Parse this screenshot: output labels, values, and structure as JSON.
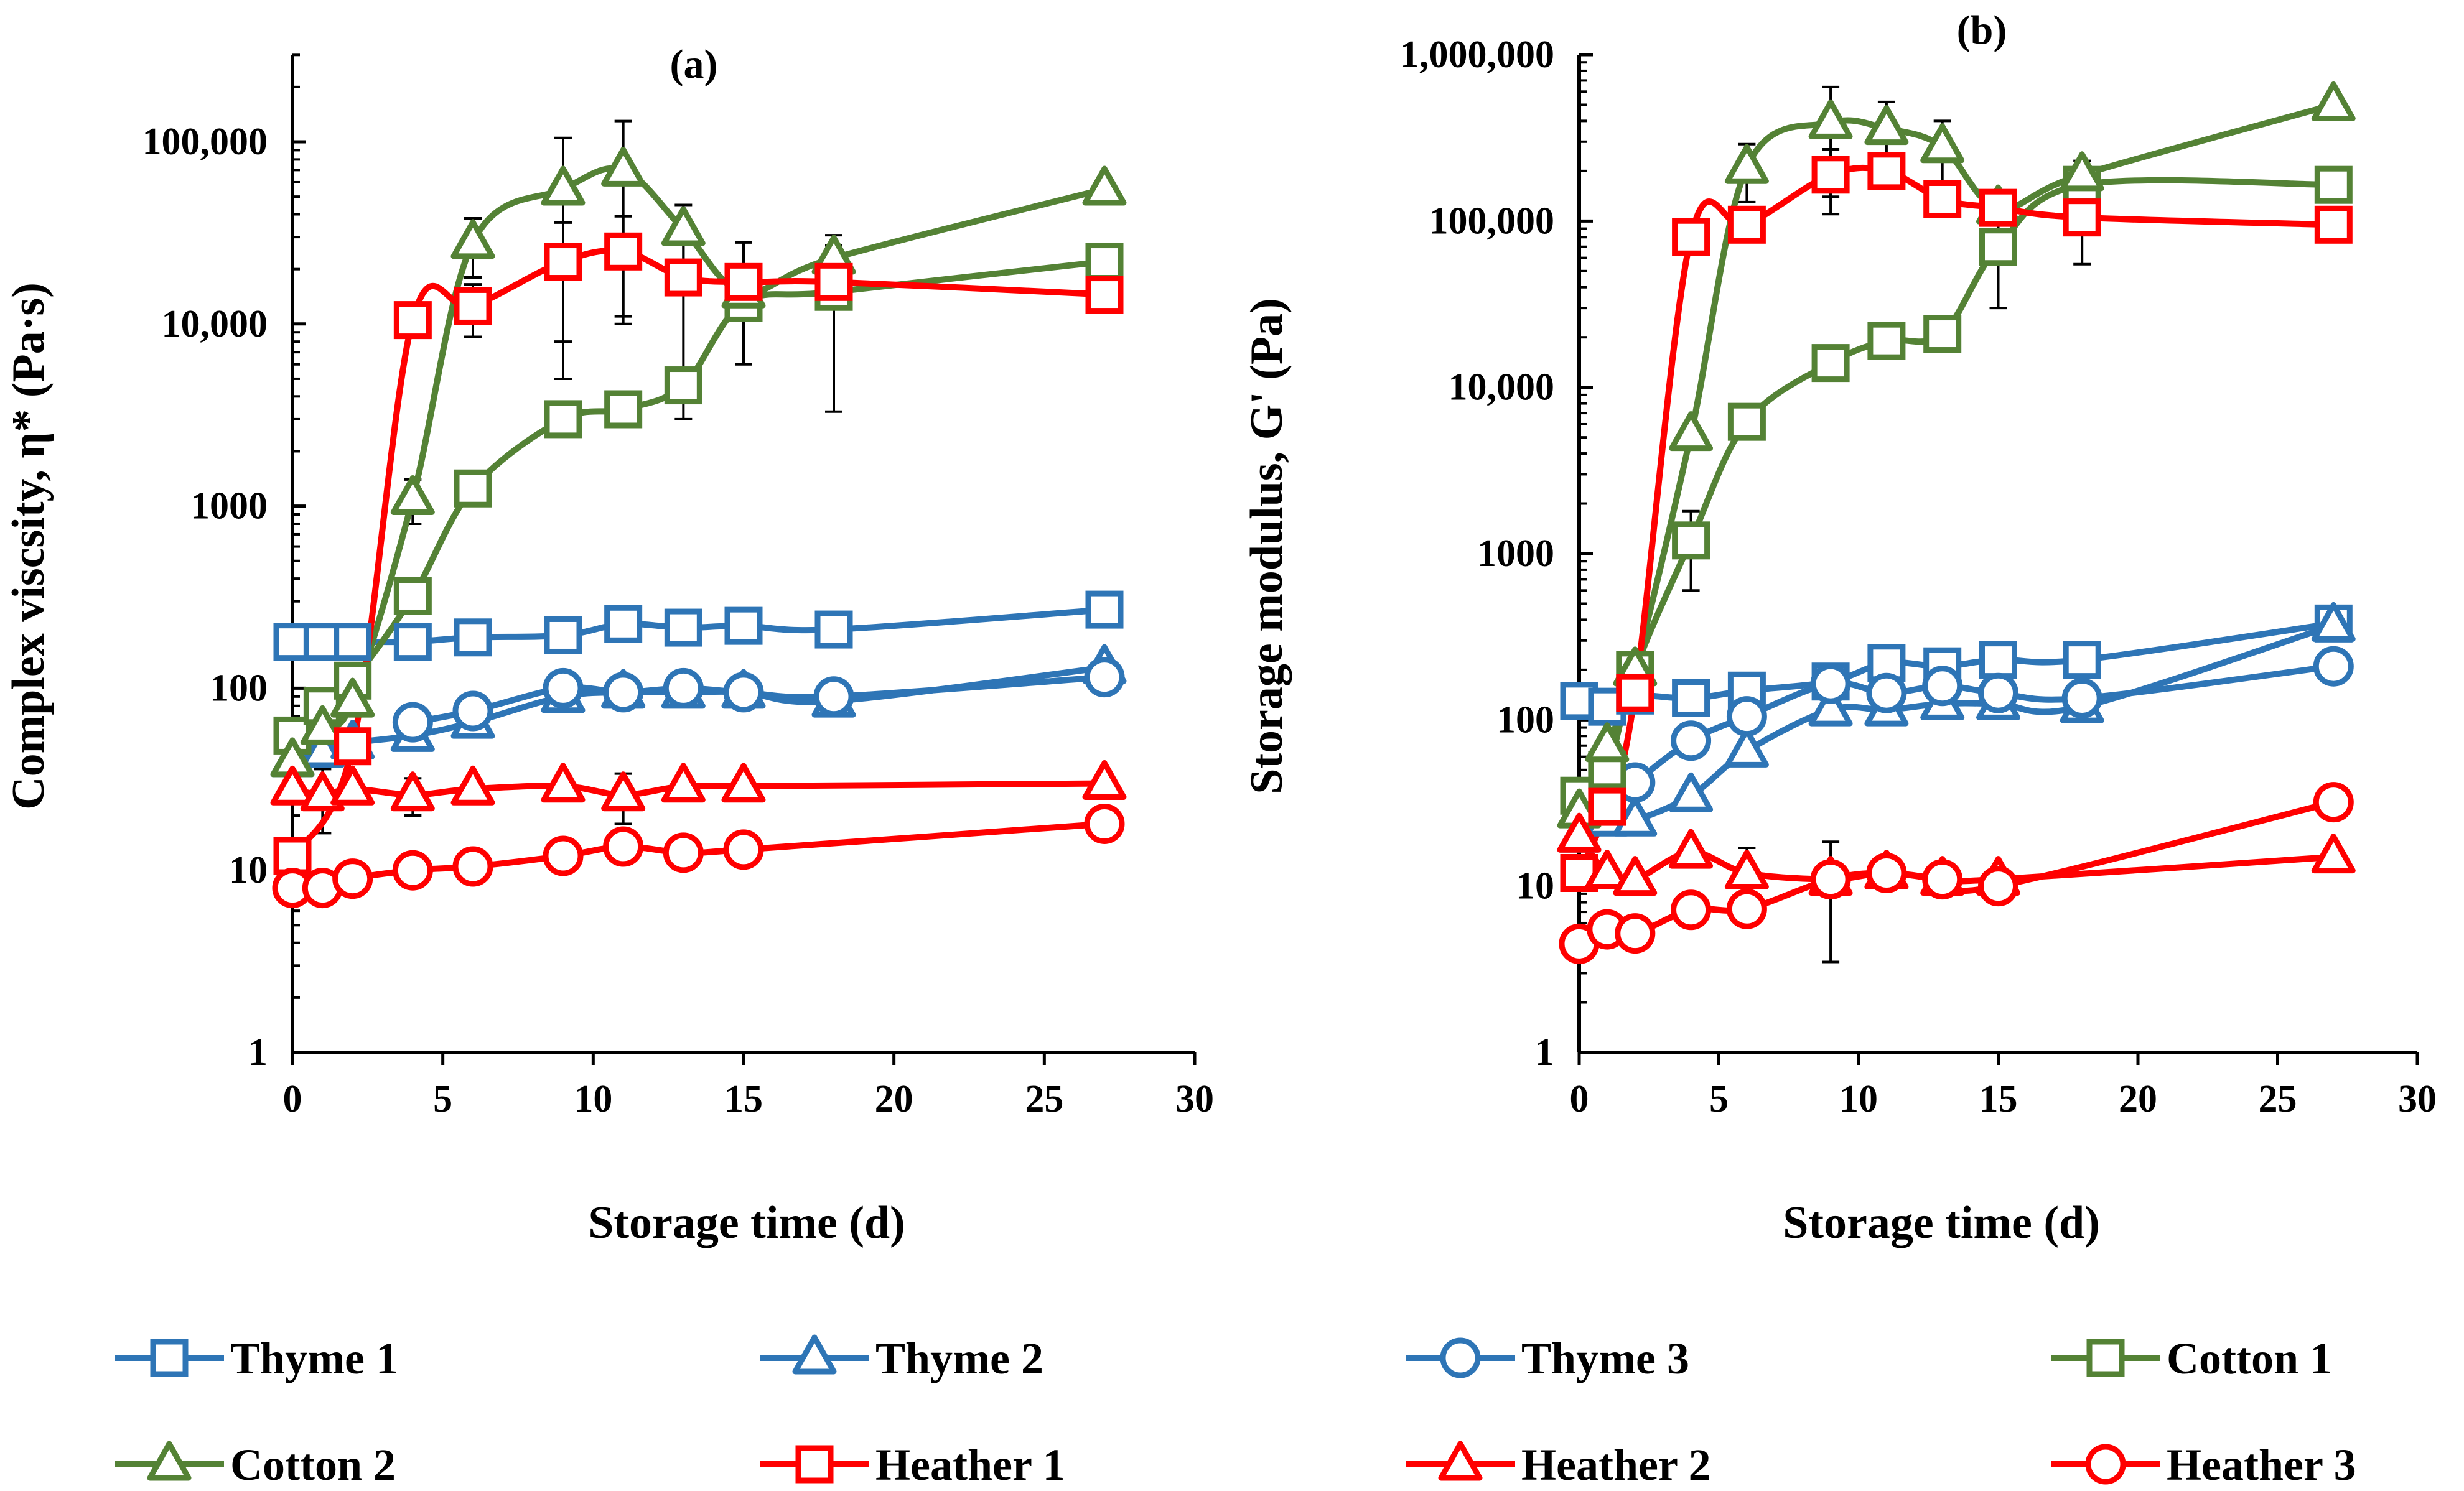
{
  "colors": {
    "thyme": "#2E75B6",
    "cotton": "#548235",
    "heather": "#FF0000",
    "axis": "#000000"
  },
  "legend": [
    {
      "name": "Thyme 1",
      "color": "#2E75B6",
      "marker": "square"
    },
    {
      "name": "Thyme 2",
      "color": "#2E75B6",
      "marker": "triangle"
    },
    {
      "name": "Thyme 3",
      "color": "#2E75B6",
      "marker": "circle"
    },
    {
      "name": "Cotton 1",
      "color": "#548235",
      "marker": "square"
    },
    {
      "name": "Cotton 2",
      "color": "#548235",
      "marker": "triangle"
    },
    {
      "name": "Heather 1",
      "color": "#FF0000",
      "marker": "square"
    },
    {
      "name": "Heather 2",
      "color": "#FF0000",
      "marker": "triangle"
    },
    {
      "name": "Heather 3",
      "color": "#FF0000",
      "marker": "circle"
    }
  ],
  "chart_data": [
    {
      "type": "line",
      "title": "(a)",
      "xlabel": "Storage time (d)",
      "ylabel": "Complex viscsity, η* (Pa·s)",
      "yscale": "log",
      "xlim": [
        0,
        30
      ],
      "ylim": [
        1,
        300000
      ],
      "xticks": [
        0,
        5,
        10,
        15,
        20,
        25,
        30
      ],
      "xtick_labels": [
        "0",
        "5",
        "10",
        "15",
        "20",
        "25",
        "30"
      ],
      "yticks": [
        1,
        10,
        100,
        1000,
        10000,
        100000
      ],
      "ytick_labels": [
        "1",
        "10",
        "100",
        "1000",
        "10,000",
        "100,000"
      ],
      "series": [
        {
          "name": "Thyme 1",
          "color": "#2E75B6",
          "marker": "square",
          "x": [
            0,
            1,
            2,
            4,
            6,
            9,
            11,
            13,
            15,
            18,
            27
          ],
          "y": [
            180,
            180,
            180,
            180,
            190,
            195,
            225,
            215,
            220,
            210,
            270
          ]
        },
        {
          "name": "Thyme 2",
          "color": "#2E75B6",
          "marker": "triangle",
          "x": [
            0,
            1,
            2,
            4,
            6,
            9,
            11,
            13,
            15,
            18,
            27
          ],
          "y": [
            40,
            45,
            50,
            55,
            65,
            90,
            95,
            95,
            95,
            85,
            130
          ]
        },
        {
          "name": "Thyme 3",
          "color": "#2E75B6",
          "marker": "circle",
          "x": [
            4,
            6,
            9,
            11,
            13,
            15,
            18,
            27
          ],
          "y": [
            65,
            75,
            100,
            95,
            100,
            95,
            90,
            115
          ]
        },
        {
          "name": "Cotton 1",
          "color": "#548235",
          "marker": "square",
          "x": [
            0,
            1,
            2,
            4,
            6,
            9,
            11,
            13,
            15,
            18,
            27
          ],
          "y": [
            55,
            80,
            110,
            320,
            1250,
            3000,
            3400,
            4600,
            13000,
            15000,
            22000
          ]
        },
        {
          "name": "Cotton 2",
          "color": "#548235",
          "marker": "triangle",
          "x": [
            0,
            1,
            2,
            4,
            6,
            9,
            11,
            13,
            15,
            18,
            27
          ],
          "y": [
            40,
            60,
            85,
            1100,
            28000,
            55000,
            70000,
            33000,
            15000,
            23000,
            55000
          ],
          "errors": [
            0,
            0,
            0,
            300,
            10000,
            50000,
            60000,
            12000,
            0,
            4000,
            0
          ]
        },
        {
          "name": "Heather 1",
          "color": "#FF0000",
          "marker": "square",
          "x": [
            0,
            2,
            4,
            6,
            9,
            11,
            13,
            15,
            18,
            27
          ],
          "y": [
            12,
            48,
            10500,
            12500,
            22000,
            25000,
            18000,
            17000,
            17000,
            14500
          ],
          "errors": [
            0,
            0,
            0,
            4000,
            14000,
            14000,
            15000,
            11000,
            13700,
            0
          ]
        },
        {
          "name": "Heather 2",
          "color": "#FF0000",
          "marker": "triangle",
          "x": [
            0,
            1,
            2,
            4,
            6,
            9,
            11,
            13,
            15,
            27
          ],
          "y": [
            28,
            26,
            28,
            26,
            28,
            29,
            26,
            29,
            29,
            30
          ],
          "errors": [
            0,
            10,
            0,
            6,
            0,
            0,
            8,
            0,
            0,
            0
          ]
        },
        {
          "name": "Heather 3",
          "color": "#FF0000",
          "marker": "circle",
          "x": [
            0,
            1,
            2,
            4,
            6,
            9,
            11,
            13,
            15,
            27
          ],
          "y": [
            8,
            8,
            9,
            10,
            10.5,
            12,
            13.5,
            12.5,
            13,
            18
          ]
        }
      ]
    },
    {
      "type": "line",
      "title": "(b)",
      "xlabel": "Storage time (d)",
      "ylabel": "Storage modulus, G' (Pa)",
      "yscale": "log",
      "xlim": [
        0,
        30
      ],
      "ylim": [
        1,
        1000000
      ],
      "xticks": [
        0,
        5,
        10,
        15,
        20,
        25,
        30
      ],
      "xtick_labels": [
        "0",
        "5",
        "10",
        "15",
        "20",
        "25",
        "30"
      ],
      "yticks": [
        1,
        10,
        100,
        1000,
        10000,
        100000,
        1000000
      ],
      "ytick_labels": [
        "1",
        "10",
        "100",
        "1000",
        "10,000",
        "100,000",
        "1,000,000"
      ],
      "series": [
        {
          "name": "Thyme 1",
          "color": "#2E75B6",
          "marker": "square",
          "x": [
            0,
            1,
            2,
            4,
            6,
            9,
            11,
            13,
            15,
            18,
            27
          ],
          "y": [
            130,
            120,
            140,
            135,
            150,
            170,
            220,
            210,
            230,
            230,
            380
          ]
        },
        {
          "name": "Thyme 2",
          "color": "#2E75B6",
          "marker": "triangle",
          "x": [
            0,
            1,
            2,
            4,
            6,
            9,
            11,
            13,
            15,
            18,
            27
          ],
          "y": [
            20,
            25,
            25,
            35,
            65,
            115,
            115,
            125,
            125,
            120,
            370
          ]
        },
        {
          "name": "Thyme 3",
          "color": "#2E75B6",
          "marker": "circle",
          "x": [
            2,
            4,
            6,
            9,
            11,
            13,
            15,
            18,
            27
          ],
          "y": [
            42,
            75,
            105,
            165,
            145,
            160,
            145,
            135,
            210
          ]
        },
        {
          "name": "Cotton 1",
          "color": "#548235",
          "marker": "square",
          "x": [
            0,
            1,
            2,
            4,
            6,
            9,
            11,
            13,
            15,
            18,
            27
          ],
          "y": [
            35,
            50,
            200,
            1200,
            6200,
            14000,
            19000,
            21000,
            70000,
            165000,
            165000
          ],
          "errors": [
            0,
            0,
            0,
            600,
            0,
            0,
            0,
            0,
            40000,
            0,
            0
          ]
        },
        {
          "name": "Cotton 2",
          "color": "#548235",
          "marker": "triangle",
          "x": [
            0,
            1,
            2,
            4,
            6,
            9,
            11,
            13,
            15,
            18,
            27
          ],
          "y": [
            28,
            70,
            200,
            5200,
            210000,
            390000,
            360000,
            280000,
            120000,
            190000,
            500000
          ],
          "errors": [
            0,
            0,
            0,
            0,
            80000,
            250000,
            160000,
            120000,
            0,
            40000,
            0
          ]
        },
        {
          "name": "Heather 1",
          "color": "#FF0000",
          "marker": "square",
          "x": [
            0,
            1,
            2,
            4,
            6,
            9,
            11,
            13,
            15,
            18,
            27
          ],
          "y": [
            12,
            30,
            145,
            80000,
            95000,
            190000,
            200000,
            135000,
            120000,
            105000,
            95000
          ],
          "errors": [
            0,
            0,
            0,
            0,
            0,
            80000,
            0,
            0,
            0,
            50000,
            0
          ]
        },
        {
          "name": "Heather 2",
          "color": "#FF0000",
          "marker": "triangle",
          "x": [
            0,
            1,
            2,
            4,
            6,
            9,
            11,
            13,
            15,
            27
          ],
          "y": [
            20,
            12,
            11,
            16,
            12,
            11,
            12,
            11,
            11,
            15
          ],
          "errors": [
            0,
            0,
            0,
            0,
            5,
            7.5,
            0,
            0,
            0,
            0
          ]
        },
        {
          "name": "Heather 3",
          "color": "#FF0000",
          "marker": "circle",
          "x": [
            0,
            1,
            2,
            4,
            6,
            9,
            11,
            13,
            15,
            27
          ],
          "y": [
            4.5,
            5.5,
            5.2,
            7.2,
            7.3,
            11,
            12,
            11,
            10,
            32
          ]
        }
      ]
    }
  ]
}
